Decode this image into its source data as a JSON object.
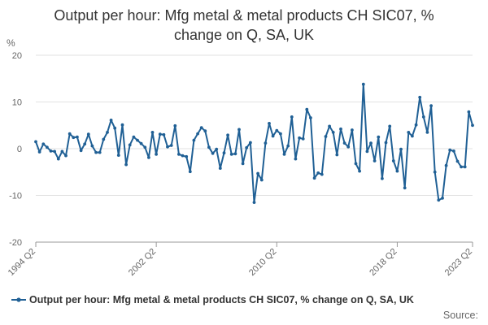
{
  "chart_data": {
    "type": "line",
    "title_line1": "Output per hour: Mfg metal & metal products CH SIC07, %",
    "title_line2": "change on Q, SA, UK",
    "ylabel": "%",
    "ylim": [
      -20,
      20
    ],
    "yticks": [
      -20,
      -10,
      0,
      10,
      20
    ],
    "grid": true,
    "legend_position": "bottom-left",
    "x_range": [
      "1994 Q2",
      "2023 Q2"
    ],
    "xticks": [
      "1994 Q2",
      "2002 Q2",
      "2010 Q2",
      "2018 Q2",
      "2023 Q2"
    ],
    "series": [
      {
        "name": "Output per hour: Mfg metal & metal products CH SIC07, % change on Q, SA, UK",
        "color": "#206095",
        "start": "1994 Q2",
        "values": [
          1.5,
          -0.7,
          1.0,
          0.3,
          -0.5,
          -0.6,
          -2.2,
          -0.6,
          -1.5,
          3.2,
          2.4,
          2.5,
          -0.4,
          1.0,
          3.1,
          0.6,
          -0.8,
          -0.8,
          2.0,
          3.5,
          6.1,
          4.4,
          -1.4,
          5.1,
          -3.4,
          0.8,
          2.5,
          1.8,
          1.1,
          0.3,
          -1.9,
          3.5,
          -1.2,
          3.1,
          3.0,
          0.4,
          0.7,
          4.9,
          -1.2,
          -1.5,
          -1.7,
          -4.9,
          1.8,
          3.2,
          4.5,
          3.8,
          0.3,
          -1.0,
          -0.1,
          -4.2,
          -0.9,
          2.9,
          -1.2,
          -1.1,
          4.1,
          -3.2,
          0.2,
          1.3,
          -11.5,
          -5.3,
          -6.7,
          1.2,
          5.4,
          2.7,
          3.9,
          3.2,
          -1.2,
          0.6,
          6.8,
          -2.2,
          2.3,
          2.1,
          8.4,
          6.6,
          -6.3,
          -5.2,
          -5.5,
          2.6,
          4.8,
          3.5,
          -1.3,
          4.2,
          1.2,
          0.4,
          4.0,
          -3.2,
          -4.8,
          13.8,
          -0.6,
          1.2,
          -2.6,
          2.5,
          -6.4,
          1.3,
          4.8,
          -2.6,
          -4.8,
          -0.1,
          -8.4,
          3.5,
          2.7,
          5.1,
          11.0,
          6.8,
          3.5,
          9.2,
          -5.0,
          -11.0,
          -10.6,
          -3.6,
          -0.3,
          -0.5,
          -2.7,
          -3.9,
          -3.9,
          7.9,
          5.0
        ]
      }
    ]
  },
  "source_label": "Source:"
}
